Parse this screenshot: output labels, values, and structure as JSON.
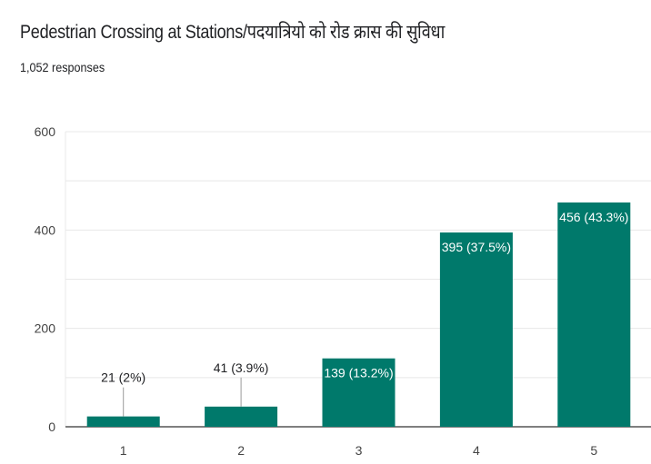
{
  "header": {
    "title": "Pedestrian Crossing at Stations/पदयात्रियो को रोड क्रास की सुविधा",
    "responses": "1,052 responses"
  },
  "colors": {
    "bar": "#00796b",
    "grid": "#e8e8e8",
    "axis": "#333333",
    "leader": "#999999"
  },
  "chart_data": {
    "type": "bar",
    "title": "Pedestrian Crossing at Stations/पदयात्रियो को रोड क्रास की सुविधा",
    "categories": [
      "1",
      "2",
      "3",
      "4",
      "5"
    ],
    "values": [
      21,
      41,
      139,
      395,
      456
    ],
    "data_labels": [
      "21 (2%)",
      "41 (3.9%)",
      "139 (13.2%)",
      "395 (37.5%)",
      "456 (43.3%)"
    ],
    "ylim": [
      0,
      600
    ],
    "yticks": [
      0,
      200,
      400,
      600
    ],
    "xlabel": "",
    "ylabel": "",
    "grid": true
  }
}
